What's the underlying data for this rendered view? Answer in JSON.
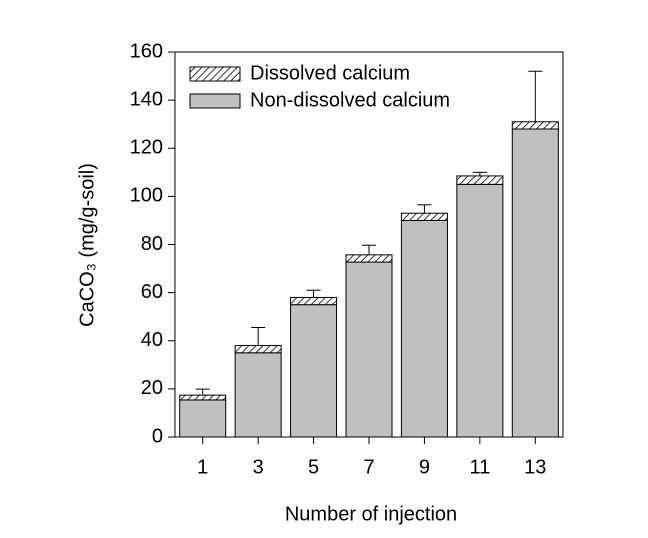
{
  "chart_data": {
    "type": "stacked-bar",
    "x_label": "Number of injection",
    "y_label": "CaCO₃ (mg/g-soil)",
    "categories": [
      "1",
      "3",
      "5",
      "7",
      "9",
      "11",
      "13"
    ],
    "series": [
      {
        "name": "Non-dissolved calcium",
        "color": "#c0c0c0",
        "values": [
          15.4,
          35,
          55,
          72.7,
          90,
          105,
          128
        ]
      },
      {
        "name": "Dissolved calcium",
        "color": "hatched",
        "values": [
          2,
          3,
          3,
          3,
          3,
          3.5,
          3
        ],
        "errors": [
          2.5,
          7.5,
          3,
          4,
          3.5,
          1.5,
          21
        ]
      }
    ],
    "ylim": [
      0,
      160
    ],
    "yticks": [
      0,
      20,
      40,
      60,
      80,
      100,
      120,
      140,
      160
    ],
    "legend": "upper-left"
  }
}
